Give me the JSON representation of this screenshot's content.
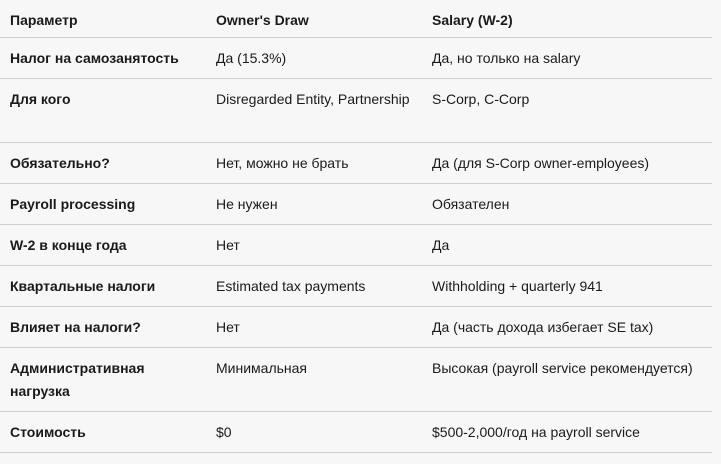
{
  "table": {
    "header": [
      "Параметр",
      "Owner's Draw",
      "Salary (W-2)"
    ],
    "rows": [
      [
        "Налог на самозанятость",
        "Да (15.3%)",
        "Да, но только на salary"
      ],
      [
        "Для кого",
        "Disregarded Entity, Partnership",
        "S-Corp, C-Corp"
      ],
      [
        "Обязательно?",
        "Нет, можно не брать",
        "Да (для S-Corp owner-employees)"
      ],
      [
        "Payroll processing",
        "Не нужен",
        "Обязателен"
      ],
      [
        "W-2 в конце года",
        "Нет",
        "Да"
      ],
      [
        "Квартальные налоги",
        "Estimated tax payments",
        "Withholding + quarterly 941"
      ],
      [
        "Влияет на налоги?",
        "Нет",
        "Да (часть дохода избегает SE tax)"
      ],
      [
        "Административная нагрузка",
        "Минимальная",
        "Высокая (payroll service рекомендуется)"
      ],
      [
        "Стоимость",
        "$0",
        "$500-2,000/год на payroll service"
      ]
    ]
  }
}
